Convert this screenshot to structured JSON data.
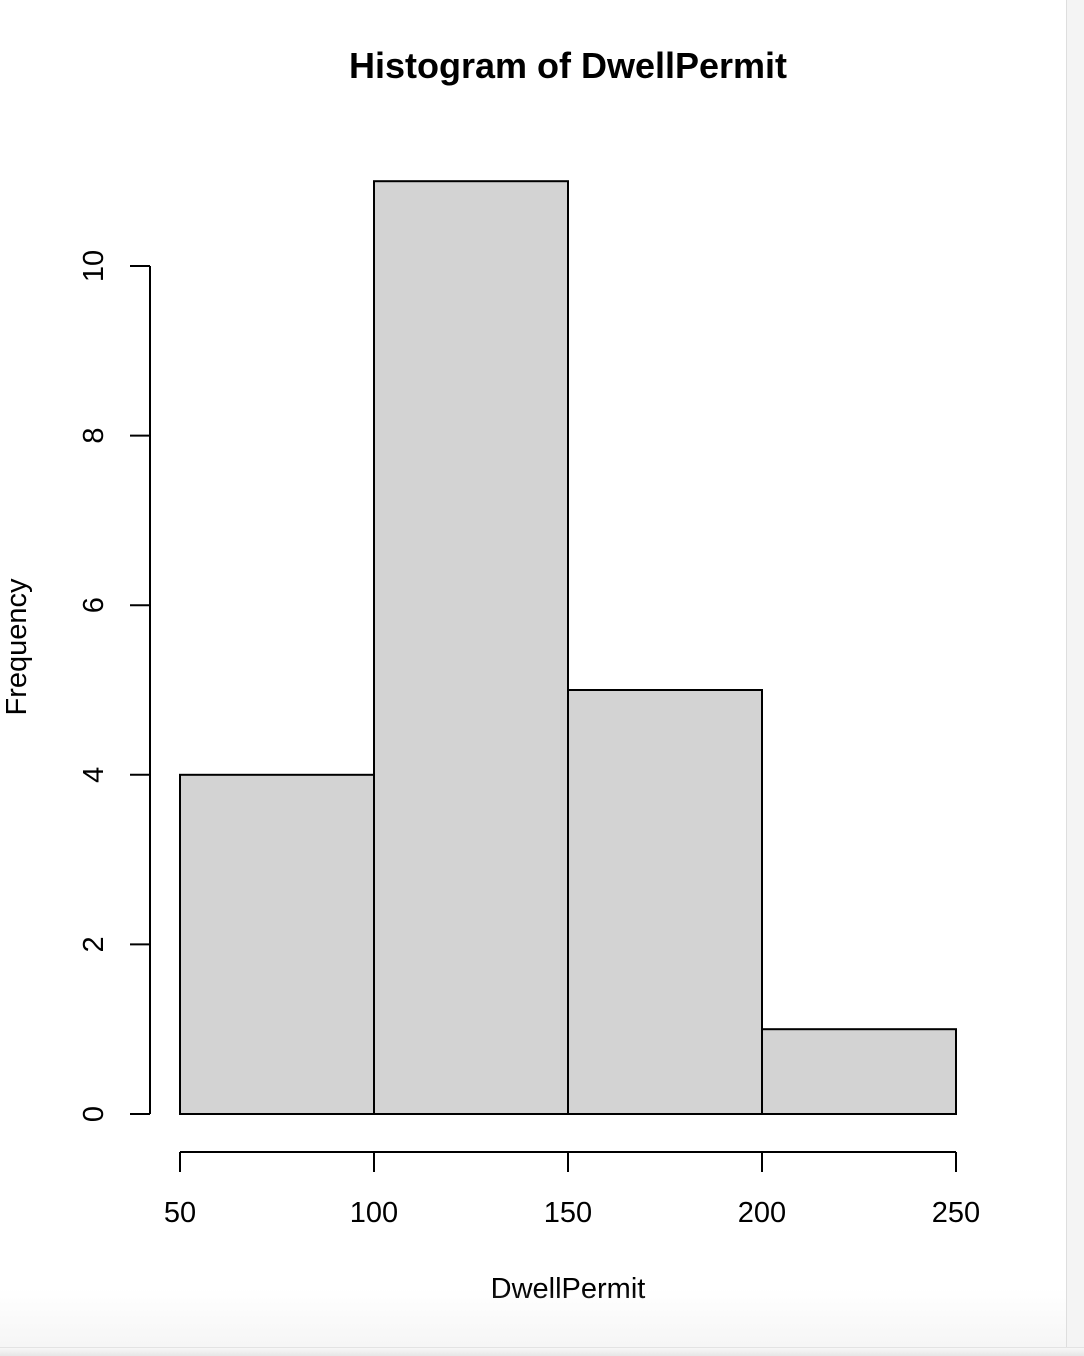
{
  "chart_data": {
    "type": "bar",
    "title": "Histogram of DwellPermit",
    "xlabel": "DwellPermit",
    "ylabel": "Frequency",
    "bins": [
      {
        "start": 50,
        "end": 100,
        "count": 4
      },
      {
        "start": 100,
        "end": 150,
        "count": 11
      },
      {
        "start": 150,
        "end": 200,
        "count": 5
      },
      {
        "start": 200,
        "end": 250,
        "count": 1
      }
    ],
    "xlim": [
      50,
      250
    ],
    "ylim": [
      0,
      11
    ],
    "x_ticks": [
      "50",
      "100",
      "150",
      "200",
      "250"
    ],
    "y_ticks": [
      "0",
      "2",
      "4",
      "6",
      "8",
      "10"
    ],
    "bar_fill": "#d3d3d3",
    "bar_stroke": "#000000",
    "grid": false,
    "legend": "none"
  }
}
